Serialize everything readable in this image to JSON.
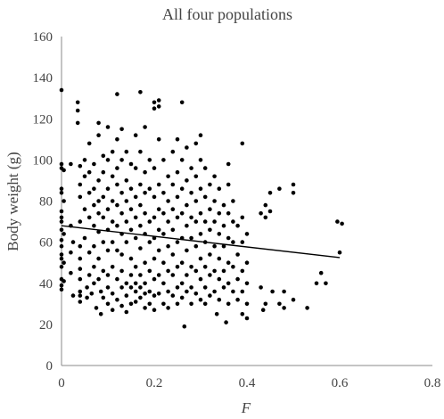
{
  "chart_data": {
    "type": "scatter",
    "title": "All four populations",
    "xlabel": "F",
    "ylabel": "Body weight (g)",
    "xlim": [
      0,
      0.8
    ],
    "ylim": [
      0,
      160
    ],
    "x_ticks": [
      "0",
      "0.2",
      "0.4",
      "0.6",
      "0.8"
    ],
    "y_ticks": [
      "0",
      "20",
      "40",
      "60",
      "80",
      "100",
      "120",
      "140",
      "160"
    ],
    "grid": false,
    "legend": "none",
    "series": [
      {
        "values": [
          [
            0.0,
            134
          ],
          [
            0.0,
            98
          ],
          [
            0.0,
            96
          ],
          [
            0.0,
            86
          ],
          [
            0.0,
            84
          ],
          [
            0.0,
            75
          ],
          [
            0.0,
            72
          ],
          [
            0.0,
            70
          ],
          [
            0.0,
            66
          ],
          [
            0.0,
            61
          ],
          [
            0.0,
            58
          ],
          [
            0.0,
            54
          ],
          [
            0.0,
            52
          ],
          [
            0.0,
            48
          ],
          [
            0.0,
            42
          ],
          [
            0.0,
            39
          ],
          [
            0.0,
            37
          ],
          [
            0.005,
            95
          ],
          [
            0.005,
            80
          ],
          [
            0.005,
            64
          ],
          [
            0.005,
            50
          ],
          [
            0.005,
            41
          ],
          [
            0.02,
            98
          ],
          [
            0.02,
            68
          ],
          [
            0.02,
            55
          ],
          [
            0.02,
            45
          ],
          [
            0.025,
            60
          ],
          [
            0.025,
            34
          ],
          [
            0.035,
            128
          ],
          [
            0.035,
            124
          ],
          [
            0.035,
            118
          ],
          [
            0.04,
            97
          ],
          [
            0.04,
            88
          ],
          [
            0.04,
            82
          ],
          [
            0.04,
            70
          ],
          [
            0.04,
            58
          ],
          [
            0.04,
            52
          ],
          [
            0.04,
            47
          ],
          [
            0.04,
            42
          ],
          [
            0.04,
            36
          ],
          [
            0.04,
            34
          ],
          [
            0.04,
            31
          ],
          [
            0.05,
            100
          ],
          [
            0.05,
            92
          ],
          [
            0.05,
            76
          ],
          [
            0.05,
            62
          ],
          [
            0.055,
            38
          ],
          [
            0.055,
            33
          ],
          [
            0.06,
            108
          ],
          [
            0.06,
            94
          ],
          [
            0.06,
            84
          ],
          [
            0.06,
            72
          ],
          [
            0.06,
            55
          ],
          [
            0.06,
            44
          ],
          [
            0.065,
            35
          ],
          [
            0.07,
            98
          ],
          [
            0.07,
            86
          ],
          [
            0.07,
            78
          ],
          [
            0.07,
            68
          ],
          [
            0.07,
            58
          ],
          [
            0.07,
            48
          ],
          [
            0.07,
            40
          ],
          [
            0.075,
            28
          ],
          [
            0.08,
            118
          ],
          [
            0.08,
            112
          ],
          [
            0.08,
            90
          ],
          [
            0.08,
            80
          ],
          [
            0.08,
            74
          ],
          [
            0.08,
            65
          ],
          [
            0.08,
            52
          ],
          [
            0.08,
            42
          ],
          [
            0.085,
            36
          ],
          [
            0.085,
            25
          ],
          [
            0.09,
            102
          ],
          [
            0.09,
            94
          ],
          [
            0.09,
            82
          ],
          [
            0.09,
            72
          ],
          [
            0.09,
            60
          ],
          [
            0.09,
            46
          ],
          [
            0.09,
            33
          ],
          [
            0.1,
            116
          ],
          [
            0.1,
            100
          ],
          [
            0.1,
            86
          ],
          [
            0.1,
            76
          ],
          [
            0.1,
            66
          ],
          [
            0.1,
            56
          ],
          [
            0.1,
            44
          ],
          [
            0.1,
            38
          ],
          [
            0.1,
            30
          ],
          [
            0.11,
            104
          ],
          [
            0.11,
            92
          ],
          [
            0.11,
            80
          ],
          [
            0.11,
            70
          ],
          [
            0.11,
            60
          ],
          [
            0.11,
            48
          ],
          [
            0.11,
            35
          ],
          [
            0.11,
            27
          ],
          [
            0.12,
            132
          ],
          [
            0.12,
            110
          ],
          [
            0.12,
            96
          ],
          [
            0.12,
            88
          ],
          [
            0.12,
            78
          ],
          [
            0.12,
            68
          ],
          [
            0.12,
            56
          ],
          [
            0.12,
            42
          ],
          [
            0.12,
            32
          ],
          [
            0.13,
            115
          ],
          [
            0.13,
            100
          ],
          [
            0.13,
            84
          ],
          [
            0.13,
            74
          ],
          [
            0.13,
            64
          ],
          [
            0.13,
            54
          ],
          [
            0.13,
            46
          ],
          [
            0.13,
            38
          ],
          [
            0.13,
            29
          ],
          [
            0.14,
            104
          ],
          [
            0.14,
            90
          ],
          [
            0.14,
            80
          ],
          [
            0.14,
            70
          ],
          [
            0.14,
            60
          ],
          [
            0.14,
            40
          ],
          [
            0.14,
            34
          ],
          [
            0.14,
            26
          ],
          [
            0.15,
            98
          ],
          [
            0.15,
            86
          ],
          [
            0.15,
            76
          ],
          [
            0.15,
            66
          ],
          [
            0.15,
            52
          ],
          [
            0.15,
            44
          ],
          [
            0.15,
            38
          ],
          [
            0.15,
            30
          ],
          [
            0.16,
            112
          ],
          [
            0.16,
            96
          ],
          [
            0.16,
            82
          ],
          [
            0.16,
            72
          ],
          [
            0.16,
            62
          ],
          [
            0.16,
            48
          ],
          [
            0.16,
            40
          ],
          [
            0.16,
            36
          ],
          [
            0.16,
            31
          ],
          [
            0.17,
            133
          ],
          [
            0.17,
            104
          ],
          [
            0.17,
            88
          ],
          [
            0.17,
            78
          ],
          [
            0.17,
            68
          ],
          [
            0.17,
            57
          ],
          [
            0.17,
            44
          ],
          [
            0.17,
            38
          ],
          [
            0.17,
            33
          ],
          [
            0.18,
            116
          ],
          [
            0.18,
            94
          ],
          [
            0.18,
            84
          ],
          [
            0.18,
            74
          ],
          [
            0.18,
            64
          ],
          [
            0.18,
            50
          ],
          [
            0.18,
            40
          ],
          [
            0.18,
            35
          ],
          [
            0.18,
            28
          ],
          [
            0.19,
            100
          ],
          [
            0.19,
            86
          ],
          [
            0.19,
            70
          ],
          [
            0.19,
            60
          ],
          [
            0.19,
            46
          ],
          [
            0.19,
            36
          ],
          [
            0.19,
            30
          ],
          [
            0.2,
            128
          ],
          [
            0.2,
            125
          ],
          [
            0.2,
            96
          ],
          [
            0.2,
            82
          ],
          [
            0.2,
            72
          ],
          [
            0.2,
            62
          ],
          [
            0.2,
            52
          ],
          [
            0.2,
            42
          ],
          [
            0.2,
            34
          ],
          [
            0.2,
            27
          ],
          [
            0.21,
            129
          ],
          [
            0.21,
            126
          ],
          [
            0.21,
            110
          ],
          [
            0.21,
            88
          ],
          [
            0.21,
            76
          ],
          [
            0.21,
            66
          ],
          [
            0.21,
            56
          ],
          [
            0.21,
            44
          ],
          [
            0.21,
            35
          ],
          [
            0.22,
            100
          ],
          [
            0.22,
            84
          ],
          [
            0.22,
            74
          ],
          [
            0.22,
            64
          ],
          [
            0.22,
            50
          ],
          [
            0.22,
            40
          ],
          [
            0.22,
            30
          ],
          [
            0.23,
            92
          ],
          [
            0.23,
            80
          ],
          [
            0.23,
            70
          ],
          [
            0.23,
            58
          ],
          [
            0.23,
            46
          ],
          [
            0.23,
            36
          ],
          [
            0.23,
            28
          ],
          [
            0.24,
            104
          ],
          [
            0.24,
            88
          ],
          [
            0.24,
            76
          ],
          [
            0.24,
            66
          ],
          [
            0.24,
            54
          ],
          [
            0.24,
            44
          ],
          [
            0.24,
            34
          ],
          [
            0.25,
            110
          ],
          [
            0.25,
            94
          ],
          [
            0.25,
            82
          ],
          [
            0.25,
            72
          ],
          [
            0.25,
            60
          ],
          [
            0.25,
            48
          ],
          [
            0.25,
            38
          ],
          [
            0.25,
            30
          ],
          [
            0.26,
            128
          ],
          [
            0.26,
            100
          ],
          [
            0.26,
            86
          ],
          [
            0.26,
            74
          ],
          [
            0.26,
            62
          ],
          [
            0.26,
            50
          ],
          [
            0.26,
            40
          ],
          [
            0.26,
            33
          ],
          [
            0.265,
            19
          ],
          [
            0.27,
            106
          ],
          [
            0.27,
            90
          ],
          [
            0.27,
            78
          ],
          [
            0.27,
            68
          ],
          [
            0.27,
            56
          ],
          [
            0.27,
            44
          ],
          [
            0.27,
            36
          ],
          [
            0.28,
            96
          ],
          [
            0.28,
            84
          ],
          [
            0.28,
            72
          ],
          [
            0.28,
            62
          ],
          [
            0.28,
            48
          ],
          [
            0.28,
            38
          ],
          [
            0.28,
            30
          ],
          [
            0.29,
            108
          ],
          [
            0.29,
            92
          ],
          [
            0.29,
            80
          ],
          [
            0.29,
            70
          ],
          [
            0.29,
            58
          ],
          [
            0.29,
            46
          ],
          [
            0.29,
            35
          ],
          [
            0.3,
            112
          ],
          [
            0.3,
            100
          ],
          [
            0.3,
            86
          ],
          [
            0.3,
            74
          ],
          [
            0.3,
            64
          ],
          [
            0.3,
            52
          ],
          [
            0.3,
            42
          ],
          [
            0.3,
            32
          ],
          [
            0.31,
            96
          ],
          [
            0.31,
            82
          ],
          [
            0.31,
            70
          ],
          [
            0.31,
            60
          ],
          [
            0.31,
            48
          ],
          [
            0.31,
            38
          ],
          [
            0.31,
            30
          ],
          [
            0.32,
            88
          ],
          [
            0.32,
            76
          ],
          [
            0.32,
            66
          ],
          [
            0.32,
            54
          ],
          [
            0.32,
            44
          ],
          [
            0.32,
            34
          ],
          [
            0.33,
            92
          ],
          [
            0.33,
            80
          ],
          [
            0.33,
            70
          ],
          [
            0.33,
            58
          ],
          [
            0.33,
            46
          ],
          [
            0.33,
            36
          ],
          [
            0.335,
            25
          ],
          [
            0.34,
            86
          ],
          [
            0.34,
            74
          ],
          [
            0.34,
            64
          ],
          [
            0.34,
            52
          ],
          [
            0.34,
            42
          ],
          [
            0.34,
            32
          ],
          [
            0.35,
            78
          ],
          [
            0.35,
            68
          ],
          [
            0.35,
            58
          ],
          [
            0.35,
            46
          ],
          [
            0.35,
            38
          ],
          [
            0.355,
            21
          ],
          [
            0.36,
            98
          ],
          [
            0.36,
            88
          ],
          [
            0.36,
            74
          ],
          [
            0.36,
            62
          ],
          [
            0.36,
            50
          ],
          [
            0.36,
            40
          ],
          [
            0.36,
            30
          ],
          [
            0.37,
            80
          ],
          [
            0.37,
            70
          ],
          [
            0.37,
            60
          ],
          [
            0.37,
            48
          ],
          [
            0.37,
            36
          ],
          [
            0.38,
            68
          ],
          [
            0.38,
            54
          ],
          [
            0.38,
            42
          ],
          [
            0.38,
            32
          ],
          [
            0.39,
            108
          ],
          [
            0.39,
            72
          ],
          [
            0.39,
            60
          ],
          [
            0.39,
            46
          ],
          [
            0.39,
            36
          ],
          [
            0.39,
            25
          ],
          [
            0.4,
            64
          ],
          [
            0.4,
            50
          ],
          [
            0.4,
            40
          ],
          [
            0.4,
            30
          ],
          [
            0.4,
            23
          ],
          [
            0.43,
            74
          ],
          [
            0.43,
            38
          ],
          [
            0.435,
            27
          ],
          [
            0.44,
            78
          ],
          [
            0.44,
            72
          ],
          [
            0.44,
            30
          ],
          [
            0.45,
            84
          ],
          [
            0.45,
            75
          ],
          [
            0.455,
            36
          ],
          [
            0.47,
            86
          ],
          [
            0.47,
            30
          ],
          [
            0.48,
            36
          ],
          [
            0.48,
            28
          ],
          [
            0.5,
            88
          ],
          [
            0.5,
            84
          ],
          [
            0.5,
            32
          ],
          [
            0.53,
            28
          ],
          [
            0.55,
            40
          ],
          [
            0.56,
            45
          ],
          [
            0.57,
            40
          ],
          [
            0.595,
            70
          ],
          [
            0.6,
            55
          ],
          [
            0.605,
            69
          ]
        ]
      }
    ],
    "trendline": {
      "x": [
        0,
        0.6
      ],
      "y": [
        68,
        52.5
      ]
    }
  }
}
